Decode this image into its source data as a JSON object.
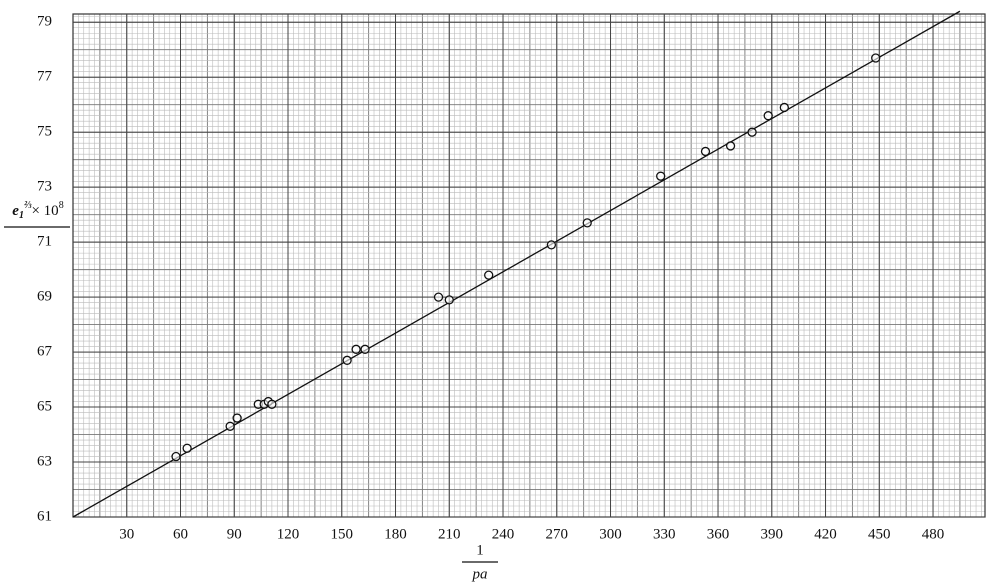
{
  "chart_data": {
    "type": "scatter",
    "x_label": {
      "numerator": "1",
      "denominator": "pa"
    },
    "y_label": {
      "base": "e",
      "sub": "1",
      "sup": "⅔",
      "rest": "× 10",
      "exp": "8"
    },
    "x": [
      57.5,
      63.7,
      87.7,
      91.6,
      103.4,
      106.7,
      109,
      111,
      153,
      158,
      163,
      204,
      210,
      232,
      267,
      287,
      328,
      353,
      367,
      379,
      388,
      397,
      448
    ],
    "values": [
      63.2,
      63.5,
      64.3,
      64.6,
      65.1,
      65.1,
      65.2,
      65.1,
      66.7,
      67.1,
      67.1,
      69.0,
      68.9,
      69.8,
      70.9,
      71.7,
      73.4,
      74.3,
      74.5,
      75.0,
      75.6,
      75.9,
      77.7
    ],
    "fit_line": {
      "x": [
        0,
        495
      ],
      "y": [
        61,
        79.4
      ]
    },
    "color": "#111111",
    "xlim": [
      0,
      509
    ],
    "ylim": [
      61,
      79.3
    ],
    "xticks": [
      30,
      60,
      90,
      120,
      150,
      180,
      210,
      240,
      270,
      300,
      330,
      360,
      390,
      420,
      450,
      480
    ],
    "yticks": [
      61,
      63,
      65,
      67,
      69,
      71,
      73,
      75,
      77,
      79
    ],
    "grid": true
  }
}
